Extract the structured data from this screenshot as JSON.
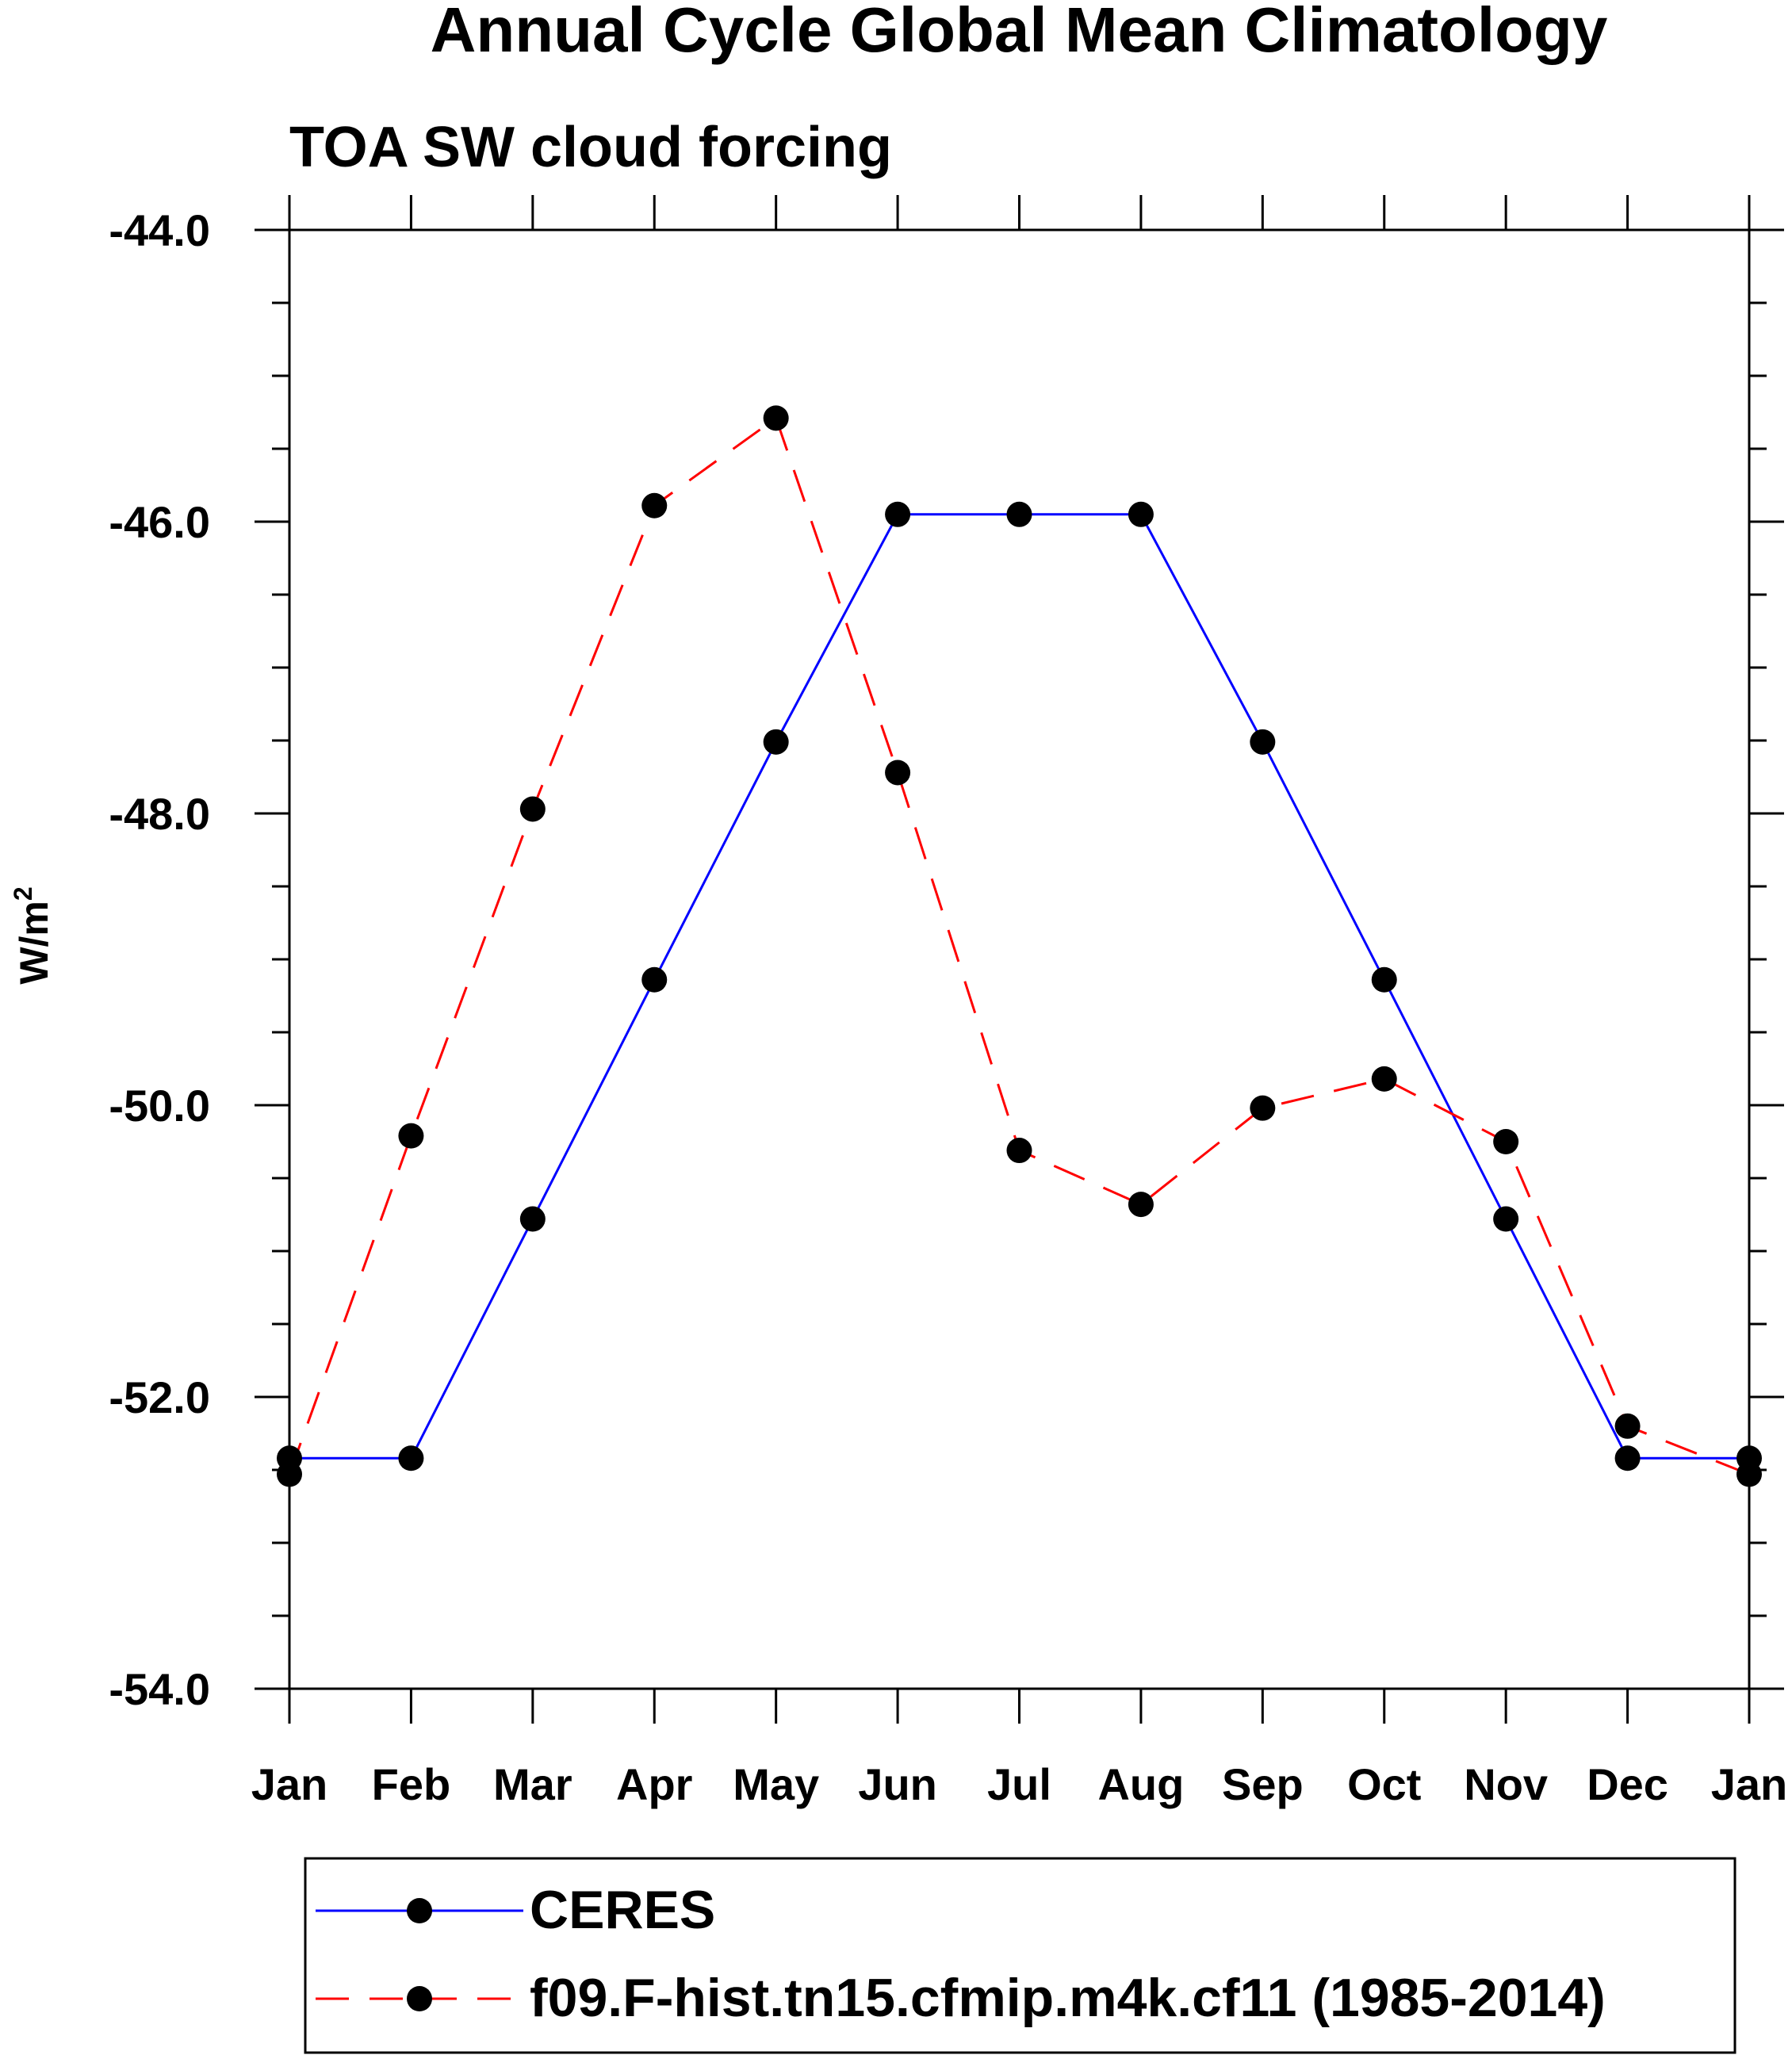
{
  "chart_data": {
    "type": "line",
    "title": "Annual Cycle Global Mean Climatology",
    "subtitle": "TOA SW cloud forcing",
    "ylabel": "W/m",
    "ylabel_superscript": "2",
    "xlabel": "",
    "categories": [
      "Jan",
      "Feb",
      "Mar",
      "Apr",
      "May",
      "Jun",
      "Jul",
      "Aug",
      "Sep",
      "Oct",
      "Nov",
      "Dec",
      "Jan"
    ],
    "ylim": [
      -54.0,
      -44.0
    ],
    "yticks_major": [
      -54.0,
      -52.0,
      -50.0,
      -48.0,
      -46.0,
      -44.0
    ],
    "ytick_labels": [
      "-54.0",
      "-52.0",
      "-50.0",
      "-48.0",
      "-46.0",
      "-44.0"
    ],
    "yticks_minor_step": 0.5,
    "series": [
      {
        "name": "CERES",
        "color": "#0000ff",
        "dash": "solid",
        "marker": "filled-circle",
        "values": [
          -52.42,
          -52.42,
          -50.78,
          -49.14,
          -47.51,
          -45.95,
          -45.95,
          -45.95,
          -47.51,
          -49.14,
          -50.78,
          -52.42,
          -52.42
        ]
      },
      {
        "name": "f09.F-hist.tn15.cfmip.m4k.cf11 (1985-2014)",
        "color": "#ff0000",
        "dash": "dashed",
        "marker": "filled-circle",
        "values": [
          -52.53,
          -50.21,
          -47.97,
          -45.89,
          -45.29,
          -47.72,
          -50.31,
          -50.68,
          -50.02,
          -49.82,
          -50.25,
          -52.2,
          -52.53
        ]
      }
    ],
    "legend_position": "bottom"
  }
}
